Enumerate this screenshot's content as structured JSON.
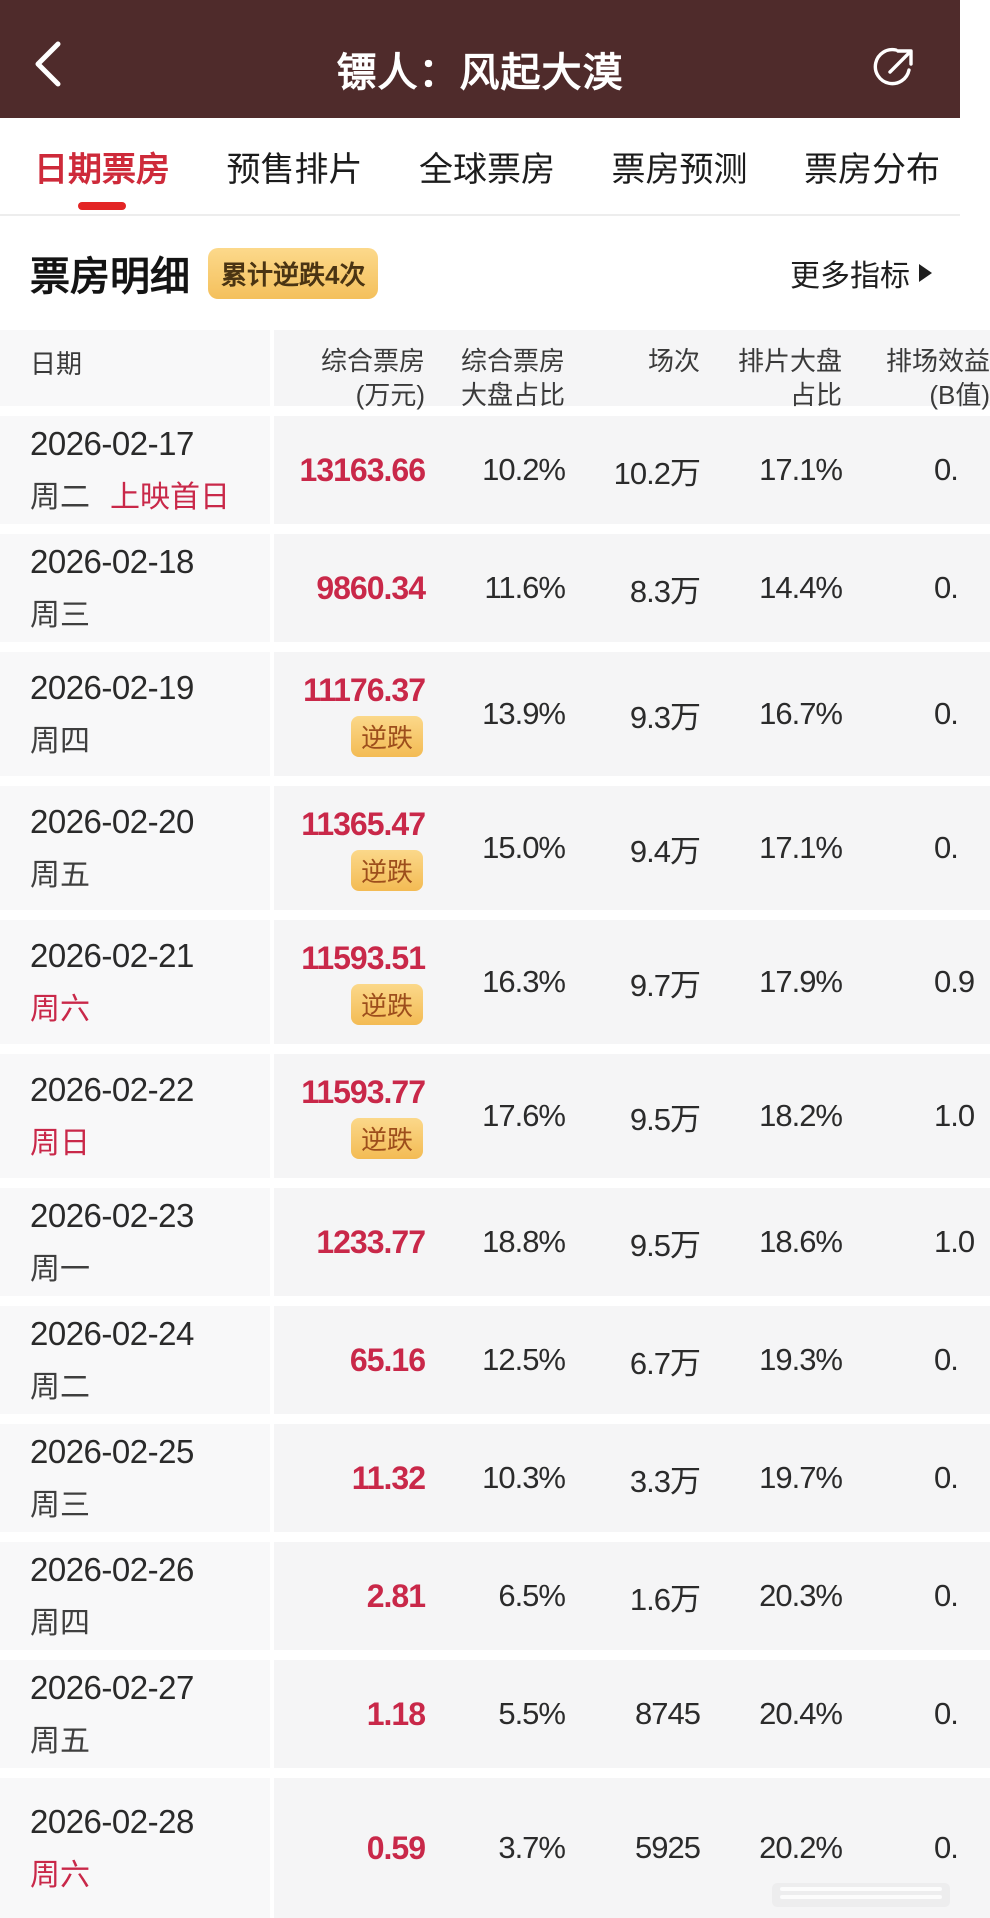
{
  "app_header": {
    "title": "镖人：风起大漠"
  },
  "tabs": [
    {
      "label": "日期票房",
      "active": true
    },
    {
      "label": "预售排片",
      "active": false
    },
    {
      "label": "全球票房",
      "active": false
    },
    {
      "label": "票房预测",
      "active": false
    },
    {
      "label": "票房分布",
      "active": false
    }
  ],
  "section": {
    "title": "票房明细",
    "badge": "累计逆跌4次",
    "more_label": "更多指标"
  },
  "table": {
    "badge_label": "逆跌",
    "columns": [
      {
        "id": "date",
        "lines": [
          "日期"
        ]
      },
      {
        "id": "gross",
        "lines": [
          "综合票房",
          "(万元)"
        ]
      },
      {
        "id": "gross_share",
        "lines": [
          "综合票房",
          "大盘占比"
        ]
      },
      {
        "id": "sessions",
        "lines": [
          "场次"
        ]
      },
      {
        "id": "screen_share",
        "lines": [
          "排片大盘",
          "占比"
        ]
      },
      {
        "id": "b_value",
        "lines": [
          "排场效益",
          "(B值)"
        ]
      }
    ],
    "rows": [
      {
        "date": "2026-02-17",
        "weekday": "周二",
        "weekend": false,
        "note": "上映首日",
        "gross": "13163.66",
        "reverse_jump": false,
        "gross_share": "10.2%",
        "sessions": "10.2万",
        "screen_share": "17.1%",
        "b_value": "0."
      },
      {
        "date": "2026-02-18",
        "weekday": "周三",
        "weekend": false,
        "note": "",
        "gross": "9860.34",
        "reverse_jump": false,
        "gross_share": "11.6%",
        "sessions": "8.3万",
        "screen_share": "14.4%",
        "b_value": "0."
      },
      {
        "date": "2026-02-19",
        "weekday": "周四",
        "weekend": false,
        "note": "",
        "gross": "11176.37",
        "reverse_jump": true,
        "gross_share": "13.9%",
        "sessions": "9.3万",
        "screen_share": "16.7%",
        "b_value": "0."
      },
      {
        "date": "2026-02-20",
        "weekday": "周五",
        "weekend": false,
        "note": "",
        "gross": "11365.47",
        "reverse_jump": true,
        "gross_share": "15.0%",
        "sessions": "9.4万",
        "screen_share": "17.1%",
        "b_value": "0."
      },
      {
        "date": "2026-02-21",
        "weekday": "周六",
        "weekend": true,
        "note": "",
        "gross": "11593.51",
        "reverse_jump": true,
        "gross_share": "16.3%",
        "sessions": "9.7万",
        "screen_share": "17.9%",
        "b_value": "0.9"
      },
      {
        "date": "2026-02-22",
        "weekday": "周日",
        "weekend": true,
        "note": "",
        "gross": "11593.77",
        "reverse_jump": true,
        "gross_share": "17.6%",
        "sessions": "9.5万",
        "screen_share": "18.2%",
        "b_value": "1.0"
      },
      {
        "date": "2026-02-23",
        "weekday": "周一",
        "weekend": false,
        "note": "",
        "gross": "1233.77",
        "reverse_jump": false,
        "gross_share": "18.8%",
        "sessions": "9.5万",
        "screen_share": "18.6%",
        "b_value": "1.0"
      },
      {
        "date": "2026-02-24",
        "weekday": "周二",
        "weekend": false,
        "note": "",
        "gross": "65.16",
        "reverse_jump": false,
        "gross_share": "12.5%",
        "sessions": "6.7万",
        "screen_share": "19.3%",
        "b_value": "0."
      },
      {
        "date": "2026-02-25",
        "weekday": "周三",
        "weekend": false,
        "note": "",
        "gross": "11.32",
        "reverse_jump": false,
        "gross_share": "10.3%",
        "sessions": "3.3万",
        "screen_share": "19.7%",
        "b_value": "0."
      },
      {
        "date": "2026-02-26",
        "weekday": "周四",
        "weekend": false,
        "note": "",
        "gross": "2.81",
        "reverse_jump": false,
        "gross_share": "6.5%",
        "sessions": "1.6万",
        "screen_share": "20.3%",
        "b_value": "0."
      },
      {
        "date": "2026-02-27",
        "weekday": "周五",
        "weekend": false,
        "note": "",
        "gross": "1.18",
        "reverse_jump": false,
        "gross_share": "5.5%",
        "sessions": "8745",
        "screen_share": "20.4%",
        "b_value": "0."
      },
      {
        "date": "2026-02-28",
        "weekday": "周六",
        "weekend": true,
        "note": "",
        "gross": "0.59",
        "reverse_jump": false,
        "gross_share": "3.7%",
        "sessions": "5925",
        "screen_share": "20.2%",
        "b_value": "0."
      }
    ]
  },
  "colors": {
    "header_bg": "#4f2b2b",
    "accent_red": "#c92849",
    "tab_active": "#ce2a3a",
    "tab_underline": "#e32525",
    "badge_bg": "#f7c969",
    "badge_text": "#9d4e1c",
    "row_bg": "#f5f5f6"
  }
}
